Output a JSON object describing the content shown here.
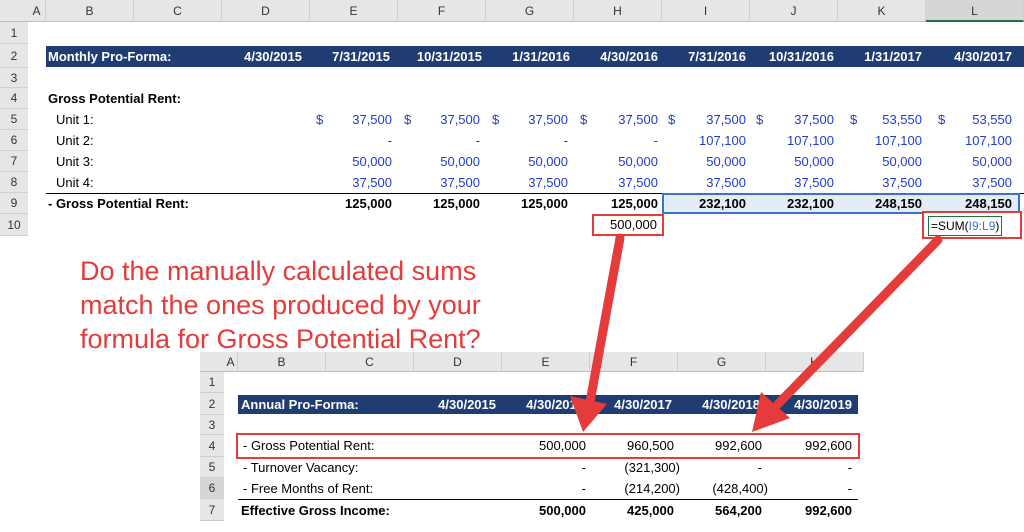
{
  "sheet1": {
    "col_headers": [
      "A",
      "B",
      "C",
      "D",
      "E",
      "F",
      "G",
      "H",
      "I",
      "J",
      "K",
      "L"
    ],
    "row_headers": [
      "1",
      "2",
      "3",
      "4",
      "5",
      "6",
      "7",
      "8",
      "9",
      "10"
    ],
    "header_title": "Monthly Pro-Forma:",
    "dates": [
      "4/30/2015",
      "7/31/2015",
      "10/31/2015",
      "1/31/2016",
      "4/30/2016",
      "7/31/2016",
      "10/31/2016",
      "1/31/2017",
      "4/30/2017"
    ],
    "section_label": "Gross Potential Rent:",
    "currency": "$",
    "units": [
      {
        "label": "Unit 1:",
        "values": [
          "37,500",
          "37,500",
          "37,500",
          "37,500",
          "37,500",
          "37,500",
          "53,550",
          "53,550"
        ]
      },
      {
        "label": "Unit 2:",
        "values": [
          "-",
          "-",
          "-",
          "-",
          "107,100",
          "107,100",
          "107,100",
          "107,100"
        ]
      },
      {
        "label": "Unit 3:",
        "values": [
          "50,000",
          "50,000",
          "50,000",
          "50,000",
          "50,000",
          "50,000",
          "50,000",
          "50,000"
        ]
      },
      {
        "label": "Unit 4:",
        "values": [
          "37,500",
          "37,500",
          "37,500",
          "37,500",
          "37,500",
          "37,500",
          "37,500",
          "37,500"
        ]
      }
    ],
    "total_label": "- Gross Potential Rent:",
    "totals": [
      "125,000",
      "125,000",
      "125,000",
      "125,000",
      "232,100",
      "232,100",
      "248,150",
      "248,150"
    ],
    "manual_sum": "500,000",
    "formula_prefix": "=SUM(",
    "formula_range": "I9:L9",
    "formula_suffix": ")"
  },
  "annotation": {
    "lines": [
      "Do the manually calculated sums",
      "match the ones produced by your",
      "formula for Gross Potential Rent?"
    ]
  },
  "sheet2": {
    "col_headers": [
      "A",
      "B",
      "C",
      "D",
      "E",
      "F",
      "G",
      "H"
    ],
    "row_headers": [
      "1",
      "2",
      "3",
      "4",
      "5",
      "6",
      "7"
    ],
    "header_title": "Annual Pro-Forma:",
    "dates": [
      "4/30/2015",
      "4/30/2016",
      "4/30/2017",
      "4/30/2018",
      "4/30/2019"
    ],
    "rows": [
      {
        "label": "- Gross Potential Rent:",
        "values": [
          "500,000",
          "960,500",
          "992,600",
          "992,600"
        ]
      },
      {
        "label": "- Turnover Vacancy:",
        "values": [
          "-",
          "(321,300)",
          "-",
          "-"
        ]
      },
      {
        "label": "- Free Months of Rent:",
        "values": [
          "-",
          "(214,200)",
          "(428,400)",
          "-"
        ]
      },
      {
        "label": "Effective Gross Income:",
        "values": [
          "500,000",
          "425,000",
          "564,200",
          "992,600"
        ]
      }
    ]
  },
  "colors": {
    "band": "#1f3d73",
    "accent": "#e53b3b",
    "input_blue": "#1f3ccf"
  }
}
